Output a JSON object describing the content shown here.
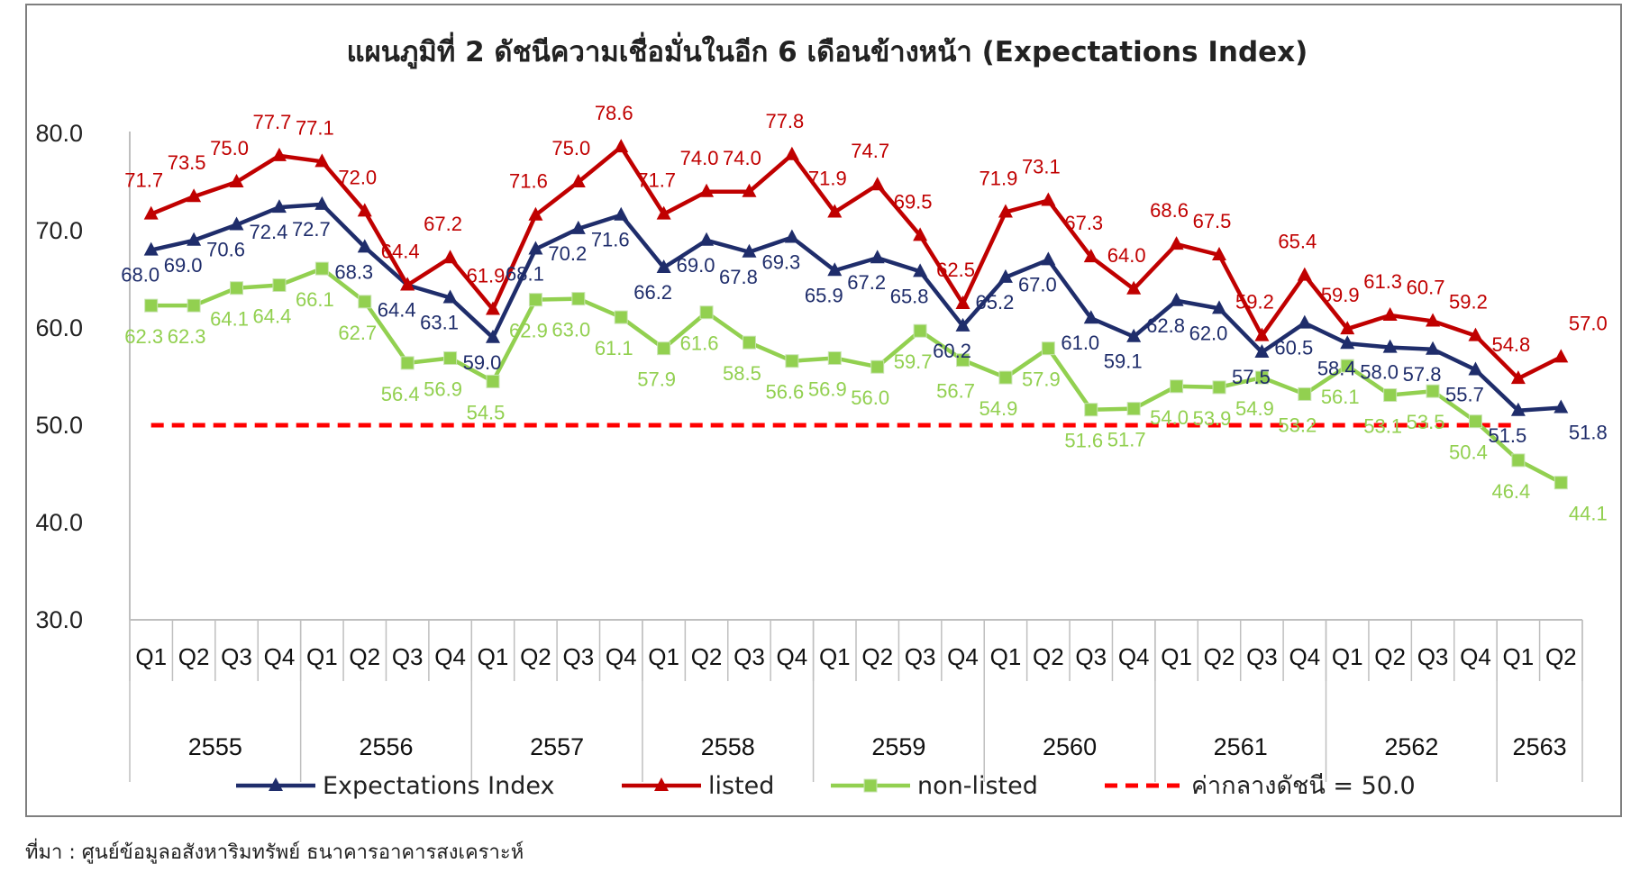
{
  "source": "ที่มา : ศูนย์ข้อมูลอสังหาริมทรัพย์ ธนาคารอาคารสงเคราะห์",
  "chart_data": {
    "type": "line",
    "title": "แผนภูมิที่ 2 ดัชนีความเชื่อมั่นในอีก 6 เดือนข้างหน้า (Expectations Index)",
    "xlabel": "",
    "ylabel": "",
    "ylim": [
      30,
      80
    ],
    "yticks": [
      "30.0",
      "40.0",
      "50.0",
      "60.0",
      "70.0",
      "80.0"
    ],
    "grid": false,
    "legend": "bottom",
    "quarters": [
      "Q1",
      "Q2",
      "Q3",
      "Q4",
      "Q1",
      "Q2",
      "Q3",
      "Q4",
      "Q1",
      "Q2",
      "Q3",
      "Q4",
      "Q1",
      "Q2",
      "Q3",
      "Q4",
      "Q1",
      "Q2",
      "Q3",
      "Q4",
      "Q1",
      "Q2",
      "Q3",
      "Q4",
      "Q1",
      "Q2",
      "Q3",
      "Q4",
      "Q1",
      "Q2",
      "Q3",
      "Q4",
      "Q1",
      "Q2"
    ],
    "years": [
      {
        "label": "2555",
        "span": 4
      },
      {
        "label": "2556",
        "span": 4
      },
      {
        "label": "2557",
        "span": 4
      },
      {
        "label": "2558",
        "span": 4
      },
      {
        "label": "2559",
        "span": 4
      },
      {
        "label": "2560",
        "span": 4
      },
      {
        "label": "2561",
        "span": 4
      },
      {
        "label": "2562",
        "span": 4
      },
      {
        "label": "2563",
        "span": 2
      }
    ],
    "series": [
      {
        "name": "Expectations Index",
        "color": "#1f2d6b",
        "marker": "triangle",
        "values": [
          68.0,
          69.0,
          70.6,
          72.4,
          72.7,
          68.3,
          64.4,
          63.1,
          59.0,
          68.1,
          70.2,
          71.6,
          66.2,
          69.0,
          67.8,
          69.3,
          65.9,
          67.2,
          65.8,
          60.2,
          65.2,
          67.0,
          61.0,
          59.1,
          62.8,
          62.0,
          57.5,
          60.5,
          58.4,
          58.0,
          57.8,
          55.7,
          51.5,
          51.8
        ]
      },
      {
        "name": "listed",
        "color": "#c00000",
        "marker": "triangle",
        "values": [
          71.7,
          73.5,
          75.0,
          77.7,
          77.1,
          72.0,
          64.4,
          67.2,
          61.9,
          71.6,
          75.0,
          78.6,
          71.7,
          74.0,
          74.0,
          77.8,
          71.9,
          74.7,
          69.5,
          62.5,
          71.9,
          73.1,
          67.3,
          64.0,
          68.6,
          67.5,
          59.2,
          65.4,
          59.9,
          61.3,
          60.7,
          59.2,
          54.8,
          57.0
        ]
      },
      {
        "name": "non-listed",
        "color": "#92d050",
        "marker": "square",
        "values": [
          62.3,
          62.3,
          64.1,
          64.4,
          66.1,
          62.7,
          56.4,
          56.9,
          54.5,
          62.9,
          63.0,
          61.1,
          57.9,
          61.6,
          58.5,
          56.6,
          56.9,
          56.0,
          59.7,
          56.7,
          54.9,
          57.9,
          51.6,
          51.7,
          54.0,
          53.9,
          54.9,
          53.2,
          56.1,
          53.1,
          53.5,
          50.4,
          46.4,
          44.1
        ]
      },
      {
        "name": "ค่ากลางดัชนี = 50.0",
        "color": "#ff0000",
        "marker": "none",
        "dashed": true,
        "value": 50.0
      }
    ]
  }
}
